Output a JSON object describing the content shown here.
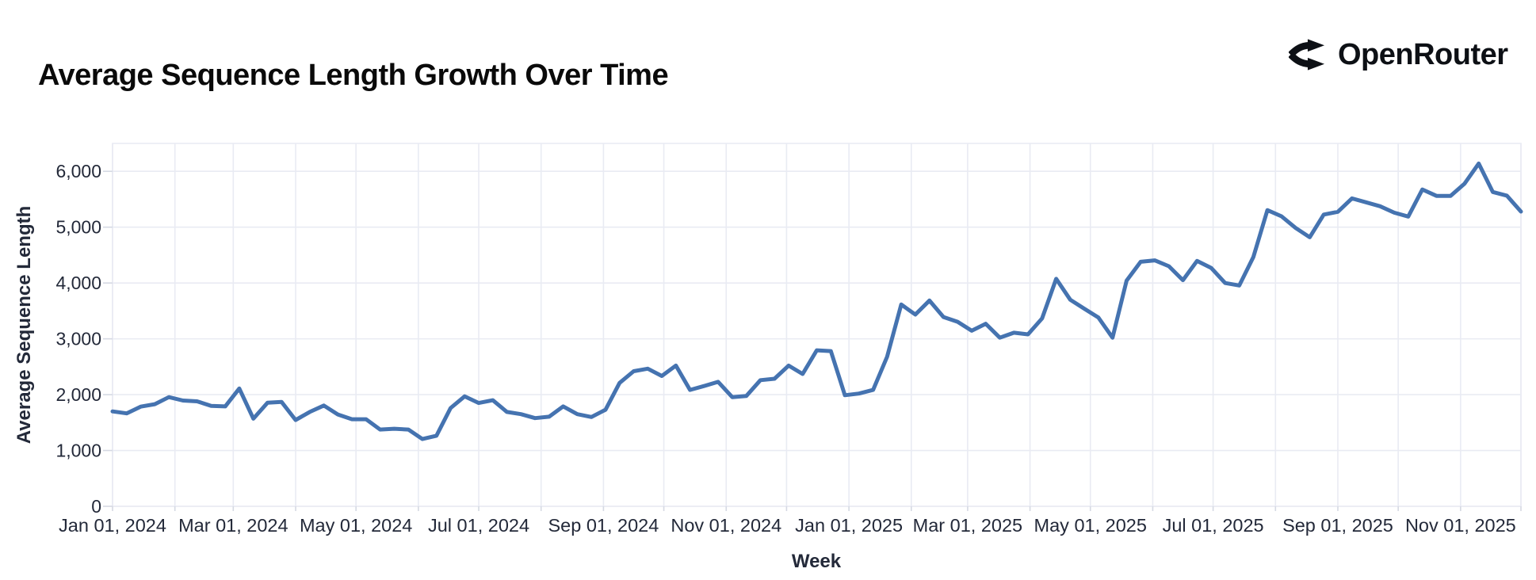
{
  "header": {
    "title": "Average Sequence Length Growth Over Time",
    "logo_text": "OpenRouter"
  },
  "colors": {
    "line": "#4573b0",
    "grid": "#e9ebf3",
    "tick_stub": "#d5d9e3",
    "axis_text": "#232939",
    "title_text": "#0a0a0a",
    "logo": "#0d1015"
  },
  "chart_data": {
    "type": "line",
    "title": "Average Sequence Length Growth Over Time",
    "xlabel": "Week",
    "ylabel": "Average Sequence Length",
    "legend": "none",
    "grid": "on",
    "ylim": [
      0,
      6500
    ],
    "x_start_date": "2024-01-01",
    "x_end_date": "2025-12-01",
    "x_interval": "weekly",
    "y_ticks": [
      {
        "value": 0,
        "label": "0"
      },
      {
        "value": 1000,
        "label": "1,000"
      },
      {
        "value": 2000,
        "label": "2,000"
      },
      {
        "value": 3000,
        "label": "3,000"
      },
      {
        "value": 4000,
        "label": "4,000"
      },
      {
        "value": 5000,
        "label": "5,000"
      },
      {
        "value": 6000,
        "label": "6,000"
      }
    ],
    "x_ticks": [
      {
        "date": "2024-01-01",
        "label": "Jan 01, 2024"
      },
      {
        "date": "2024-03-01",
        "label": "Mar 01, 2024"
      },
      {
        "date": "2024-05-01",
        "label": "May 01, 2024"
      },
      {
        "date": "2024-07-01",
        "label": "Jul 01, 2024"
      },
      {
        "date": "2024-09-01",
        "label": "Sep 01, 2024"
      },
      {
        "date": "2024-11-01",
        "label": "Nov 01, 2024"
      },
      {
        "date": "2025-01-01",
        "label": "Jan 01, 2025"
      },
      {
        "date": "2025-03-01",
        "label": "Mar 01, 2025"
      },
      {
        "date": "2025-05-01",
        "label": "May 01, 2025"
      },
      {
        "date": "2025-07-01",
        "label": "Jul 01, 2025"
      },
      {
        "date": "2025-09-01",
        "label": "Sep 01, 2025"
      },
      {
        "date": "2025-11-01",
        "label": "Nov 01, 2025"
      }
    ],
    "series": [
      {
        "name": "Average Sequence Length",
        "color": "#4573b0",
        "values": [
          1700,
          1665,
          1785,
          1830,
          1955,
          1895,
          1880,
          1800,
          1790,
          2110,
          1570,
          1855,
          1870,
          1545,
          1690,
          1805,
          1645,
          1560,
          1560,
          1375,
          1390,
          1375,
          1205,
          1265,
          1760,
          1970,
          1850,
          1900,
          1690,
          1650,
          1580,
          1605,
          1790,
          1650,
          1600,
          1730,
          2210,
          2420,
          2465,
          2335,
          2520,
          2085,
          2155,
          2230,
          1955,
          1975,
          2260,
          2285,
          2520,
          2370,
          2795,
          2780,
          1990,
          2020,
          2085,
          2680,
          3615,
          3435,
          3685,
          3390,
          3305,
          3145,
          3270,
          3020,
          3110,
          3080,
          3365,
          4075,
          3700,
          3540,
          3380,
          3020,
          4040,
          4380,
          4405,
          4300,
          4050,
          4395,
          4270,
          4000,
          3955,
          4465,
          5305,
          5195,
          4985,
          4820,
          5225,
          5275,
          5515,
          5445,
          5375,
          5260,
          5190,
          5675,
          5560,
          5560,
          5780,
          6140,
          5630,
          5565,
          5280
        ]
      }
    ]
  }
}
